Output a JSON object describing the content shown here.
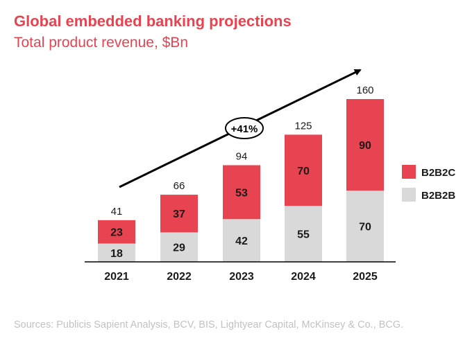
{
  "header": {
    "title": "Global embedded banking projections",
    "subtitle": "Total product revenue, $Bn"
  },
  "footer": {
    "source": "Sources: Publicis Sapient Analysis, BCV, BIS, Lightyear Capital, McKinsey & Co., BCG."
  },
  "chart_data": {
    "type": "bar",
    "stacked": true,
    "categories": [
      "2021",
      "2022",
      "2023",
      "2024",
      "2025"
    ],
    "series": [
      {
        "name": "B2B2B",
        "values": [
          18,
          29,
          42,
          55,
          70
        ],
        "color": "#d9d9d9"
      },
      {
        "name": "B2B2C",
        "values": [
          23,
          37,
          53,
          70,
          90
        ],
        "color": "#e84351"
      }
    ],
    "totals": [
      41,
      66,
      94,
      125,
      160
    ],
    "annotation": "+41%",
    "legend_position": "right",
    "grid": false,
    "ylim": [
      0,
      160
    ]
  }
}
